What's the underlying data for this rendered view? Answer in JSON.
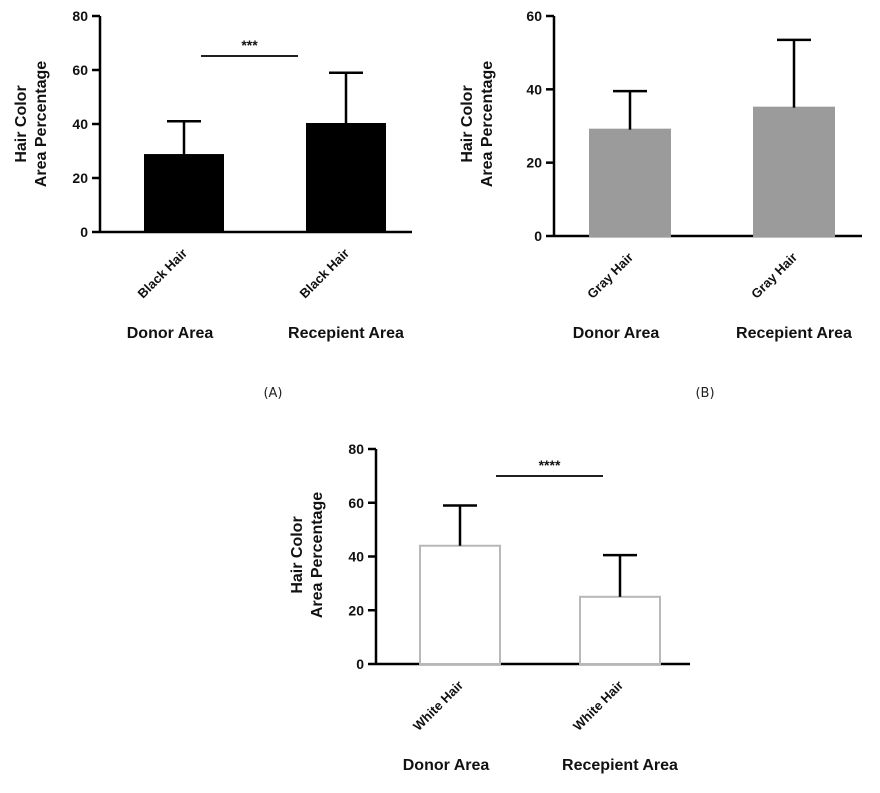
{
  "chart_data": [
    {
      "id": "A",
      "type": "bar",
      "panel_label": "(A)",
      "ylabel_lines": [
        "Hair Color",
        "Area Percentage"
      ],
      "ylim": [
        0,
        80
      ],
      "yticks": [
        0,
        20,
        40,
        60,
        80
      ],
      "categories": [
        "Black Hair",
        "Black Hair"
      ],
      "groups": [
        "Donor Area",
        "Recepient Area"
      ],
      "values": [
        28.5,
        40
      ],
      "errors": [
        12.5,
        19
      ],
      "bar_fill": "#000000",
      "bar_stroke": "#000000",
      "significance": "***"
    },
    {
      "id": "B",
      "type": "bar",
      "panel_label": "(B)",
      "ylabel_lines": [
        "Hair Color",
        "Area Percentage"
      ],
      "ylim": [
        0,
        60
      ],
      "yticks": [
        0,
        20,
        40,
        60
      ],
      "categories": [
        "Gray Hair",
        "Gray Hair"
      ],
      "groups": [
        "Donor Area",
        "Recepient Area"
      ],
      "values": [
        29,
        35
      ],
      "errors": [
        10.5,
        18.5
      ],
      "bar_fill": "#9b9b9b",
      "bar_stroke": "#9b9b9b",
      "significance": ""
    },
    {
      "id": "C",
      "type": "bar",
      "panel_label": "",
      "ylabel_lines": [
        "Hair Color",
        "Area Percentage"
      ],
      "ylim": [
        0,
        80
      ],
      "yticks": [
        0,
        20,
        40,
        60,
        80
      ],
      "categories": [
        "White Hair",
        "White Hair"
      ],
      "groups": [
        "Donor Area",
        "Recepient Area"
      ],
      "values": [
        44,
        25
      ],
      "errors": [
        15,
        15.5
      ],
      "bar_fill": "#ffffff",
      "bar_stroke": "#b8b8b8",
      "significance": "****"
    }
  ]
}
